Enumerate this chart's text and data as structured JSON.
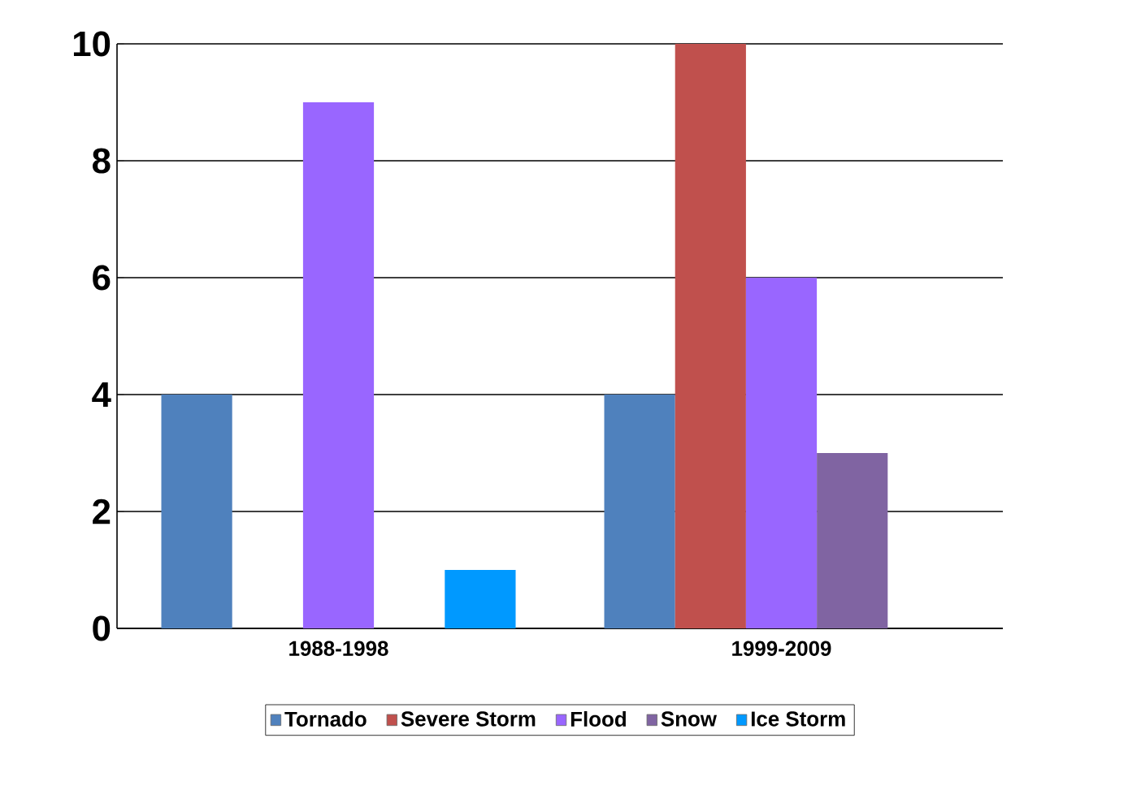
{
  "chart_data": {
    "type": "bar",
    "categories": [
      "1988-1998",
      "1999-2009"
    ],
    "series": [
      {
        "name": "Tornado",
        "color": "#4f81bd",
        "values": [
          4,
          4
        ]
      },
      {
        "name": "Severe Storm",
        "color": "#c0504d",
        "values": [
          0,
          10
        ]
      },
      {
        "name": "Flood",
        "color": "#9966ff",
        "values": [
          9,
          6
        ]
      },
      {
        "name": "Snow",
        "color": "#8064a2",
        "values": [
          0,
          3
        ]
      },
      {
        "name": "Ice Storm",
        "color": "#0099ff",
        "values": [
          1,
          0
        ]
      }
    ],
    "ylim": [
      0,
      10
    ],
    "yticks": [
      0,
      2,
      4,
      6,
      8,
      10
    ],
    "grid": "y",
    "legend": "bottom"
  }
}
